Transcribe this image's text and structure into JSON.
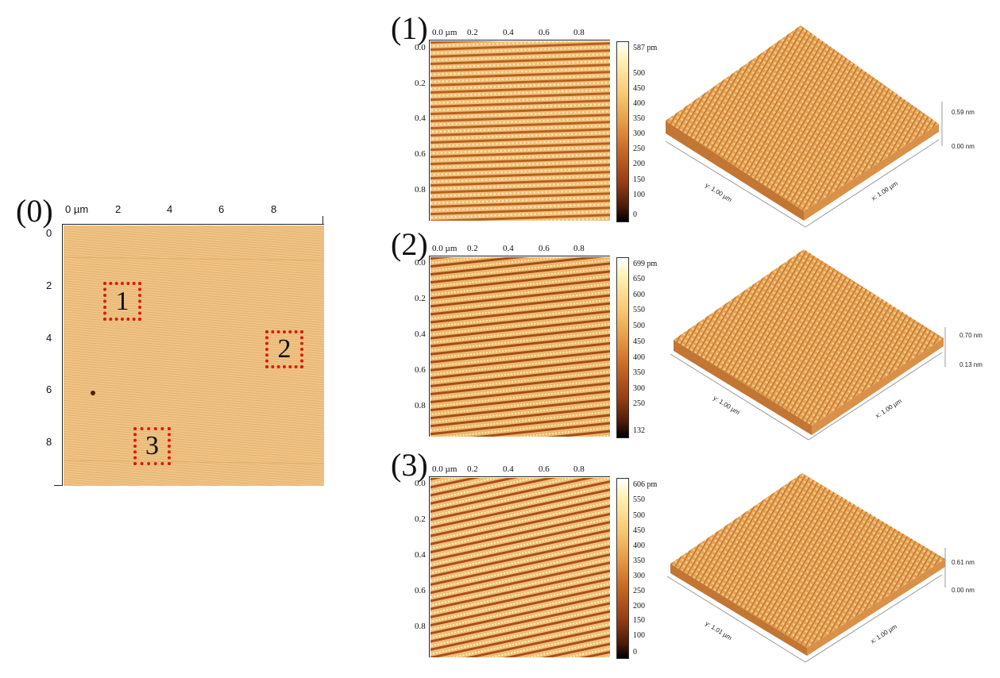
{
  "overview": {
    "panel_label": "(0)",
    "x_ticks": [
      "0 µm",
      "2",
      "4",
      "6",
      "8"
    ],
    "y_ticks": [
      "0",
      "2",
      "4",
      "6",
      "8"
    ],
    "regions": [
      {
        "label": "1"
      },
      {
        "label": "2"
      },
      {
        "label": "3"
      }
    ]
  },
  "panels": [
    {
      "panel_label": "(1)",
      "x_ticks": [
        "0.0 µm",
        "0.2",
        "0.4",
        "0.6",
        "0.8"
      ],
      "y_ticks": [
        "0.0",
        "0.2",
        "0.4",
        "0.6",
        "0.8"
      ],
      "colorbar_ticks": [
        "587 pm",
        "500",
        "450",
        "400",
        "350",
        "300",
        "250",
        "200",
        "150",
        "100",
        "0"
      ],
      "surface": {
        "z_max": "0.59 nm",
        "z_min": "0.00 nm",
        "y_label": "y: 1.00 µm",
        "x_label": "x: 1.00 µm"
      }
    },
    {
      "panel_label": "(2)",
      "x_ticks": [
        "0.0 µm",
        "0.2",
        "0.4",
        "0.6",
        "0.8"
      ],
      "y_ticks": [
        "0.0",
        "0.2",
        "0.4",
        "0.6",
        "0.8"
      ],
      "colorbar_ticks": [
        "699 pm",
        "650",
        "600",
        "550",
        "500",
        "450",
        "400",
        "350",
        "300",
        "250",
        "132"
      ],
      "surface": {
        "z_max": "0.70 nm",
        "z_min": "0.13 nm",
        "y_label": "y: 1.00 µm",
        "x_label": "x: 1.00 µm"
      }
    },
    {
      "panel_label": "(3)",
      "x_ticks": [
        "0.0 µm",
        "0.2",
        "0.4",
        "0.6",
        "0.8"
      ],
      "y_ticks": [
        "0.0",
        "0.2",
        "0.4",
        "0.6",
        "0.8"
      ],
      "colorbar_ticks": [
        "606 pm",
        "550",
        "500",
        "450",
        "400",
        "350",
        "300",
        "250",
        "200",
        "150",
        "100",
        "0"
      ],
      "surface": {
        "z_max": "0.61 nm",
        "z_min": "0.00 nm",
        "y_label": "y: 1.01 µm",
        "x_label": "x: 1.00 µm"
      }
    }
  ],
  "colors": {
    "texture_light": "#f3c98a",
    "texture_mid": "#e0a255",
    "texture_dark": "#8e3c12",
    "region_box": "#e0180c"
  }
}
